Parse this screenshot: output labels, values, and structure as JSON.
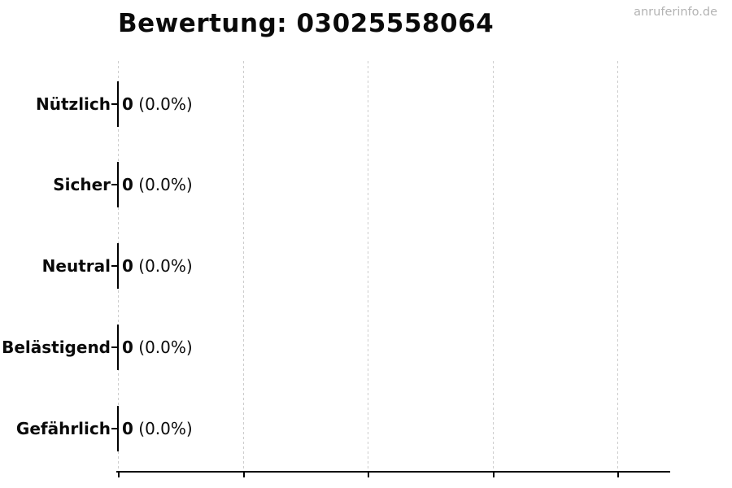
{
  "watermark": {
    "text": "anruferinfo.de",
    "color": "#b3b3b3"
  },
  "chart_data": {
    "type": "bar",
    "orientation": "horizontal",
    "title": "Bewertung: 03025558064",
    "categories": [
      "Nützlich",
      "Sicher",
      "Neutral",
      "Belästigend",
      "Gefährlich"
    ],
    "values": [
      0,
      0,
      0,
      0,
      0
    ],
    "percentages": [
      0.0,
      0.0,
      0.0,
      0.0,
      0.0
    ],
    "count_labels": [
      "0",
      "0",
      "0",
      "0",
      "0"
    ],
    "percent_labels": [
      "(0.0%)",
      "(0.0%)",
      "(0.0%)",
      "(0.0%)",
      "(0.0%)"
    ],
    "xlabel": "",
    "ylabel": "",
    "xlim": [
      0,
      4.43
    ],
    "x_tick_positions": [
      0,
      1,
      2,
      3,
      4
    ],
    "x_tick_labels_visible": false,
    "grid": true,
    "grid_axis": "x",
    "grid_style": "dashed",
    "legend": false,
    "bar_edge_color": "#000000"
  },
  "colors": {
    "background": "#ffffff",
    "grid": "#cdcdcd",
    "axis": "#000000",
    "text": "#0a0a0a",
    "watermark": "#b3b3b3"
  }
}
